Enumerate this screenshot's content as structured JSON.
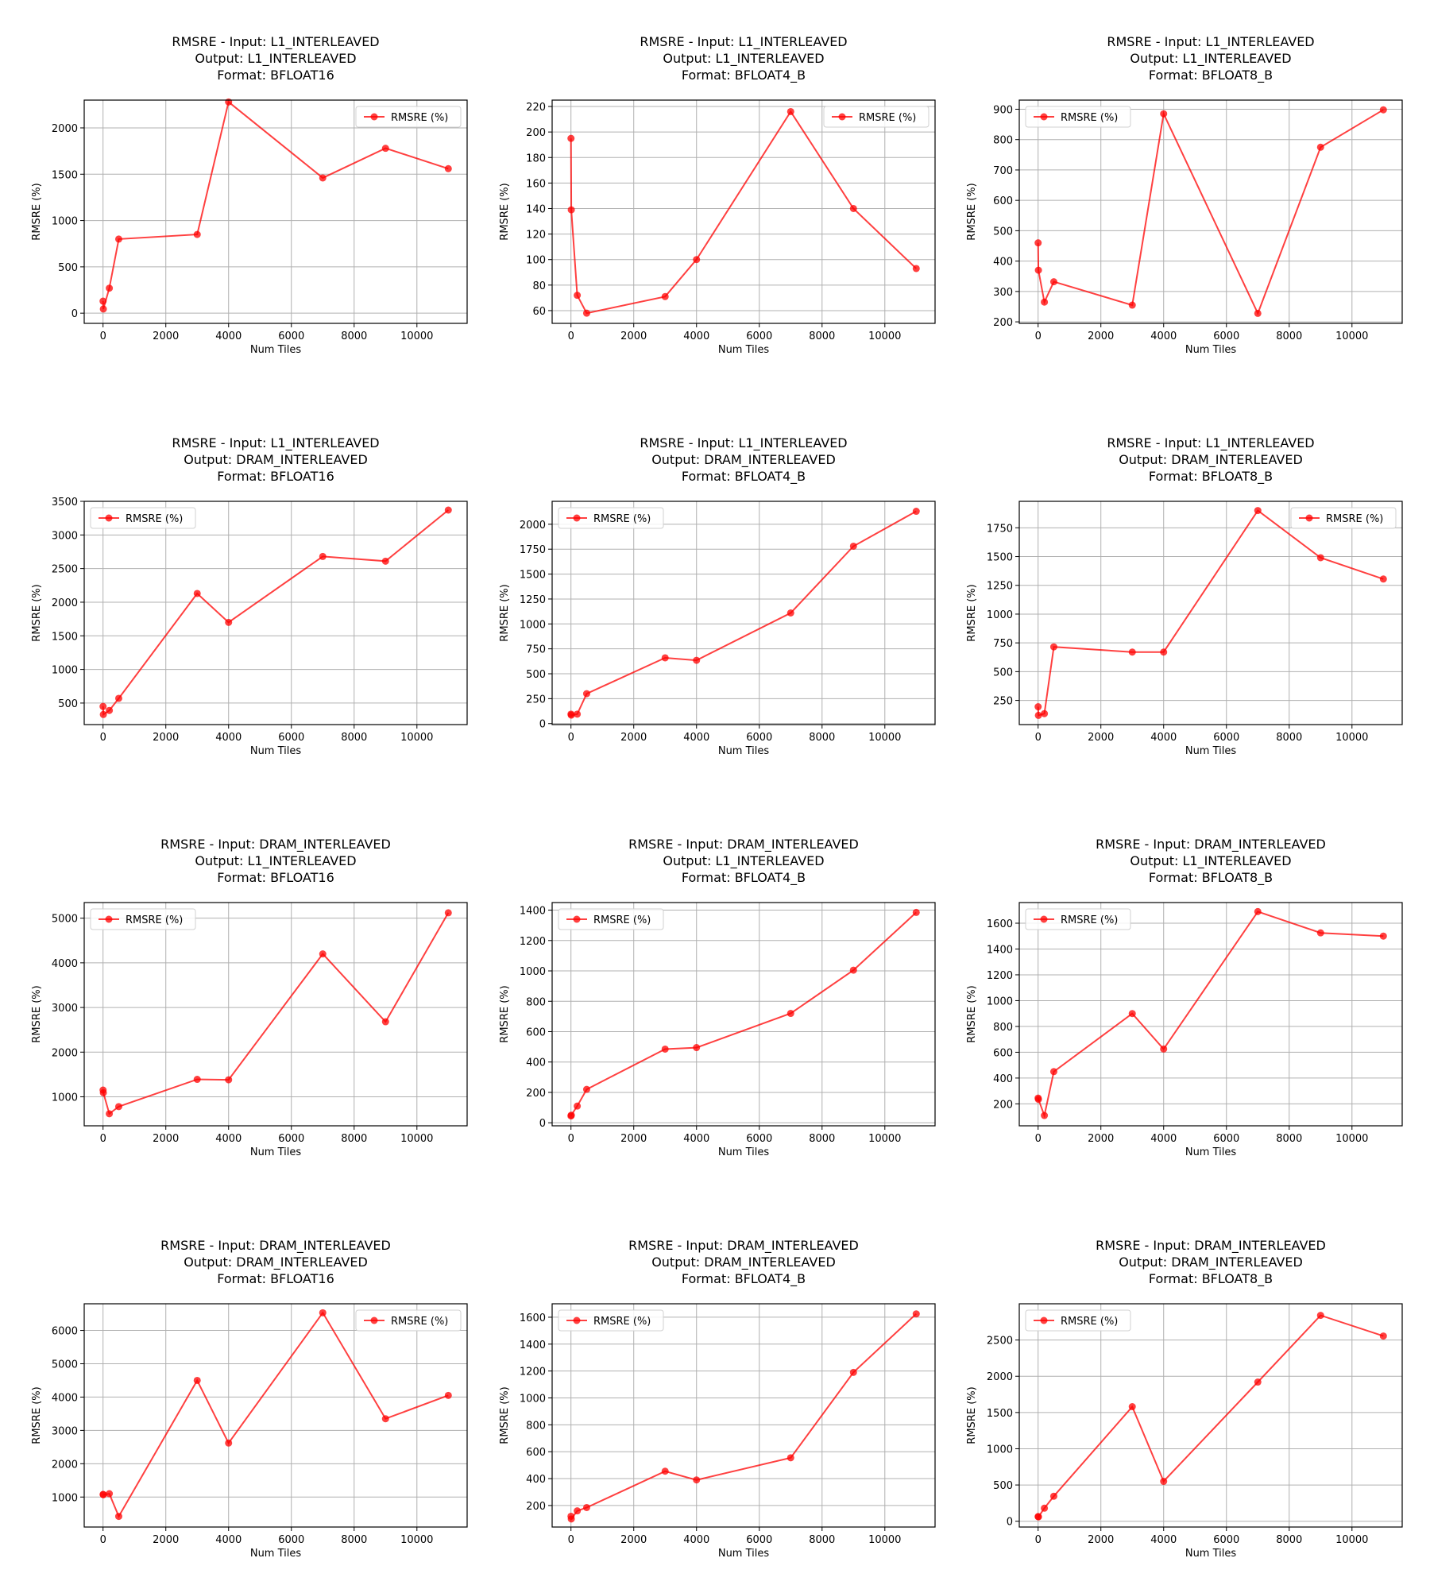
{
  "legend_label": "RMSRE (%)",
  "chart_data": [
    {
      "type": "line",
      "title_lines": [
        "RMSRE - Input: L1_INTERLEAVED",
        "Output: L1_INTERLEAVED",
        "Format: BFLOAT16"
      ],
      "xlabel": "Num Tiles",
      "ylabel": "RMSRE (%)",
      "legend": "top-right",
      "grid": true,
      "xlim": [
        -600,
        11600
      ],
      "ylim": [
        -110,
        2300
      ],
      "xticks": [
        0,
        2000,
        4000,
        6000,
        8000,
        10000
      ],
      "yticks": [
        0,
        500,
        1000,
        1500,
        2000
      ],
      "series": [
        {
          "name": "RMSRE (%)",
          "color": "#ff0000",
          "x": [
            1,
            10,
            200,
            500,
            3000,
            4000,
            7000,
            9000,
            11000
          ],
          "y": [
            130,
            45,
            270,
            800,
            850,
            2280,
            1460,
            1780,
            1560
          ]
        }
      ]
    },
    {
      "type": "line",
      "title_lines": [
        "RMSRE - Input: L1_INTERLEAVED",
        "Output: L1_INTERLEAVED",
        "Format: BFLOAT4_B"
      ],
      "xlabel": "Num Tiles",
      "ylabel": "RMSRE (%)",
      "legend": "top-right",
      "grid": true,
      "xlim": [
        -600,
        11600
      ],
      "ylim": [
        50,
        225
      ],
      "xticks": [
        0,
        2000,
        4000,
        6000,
        8000,
        10000
      ],
      "yticks": [
        60,
        80,
        100,
        120,
        140,
        160,
        180,
        200,
        220
      ],
      "series": [
        {
          "name": "RMSRE (%)",
          "color": "#ff0000",
          "x": [
            1,
            10,
            200,
            500,
            3000,
            4000,
            7000,
            9000,
            11000
          ],
          "y": [
            195,
            139,
            72,
            58,
            71,
            100,
            216,
            140,
            93
          ]
        }
      ]
    },
    {
      "type": "line",
      "title_lines": [
        "RMSRE - Input: L1_INTERLEAVED",
        "Output: L1_INTERLEAVED",
        "Format: BFLOAT8_B"
      ],
      "xlabel": "Num Tiles",
      "ylabel": "RMSRE (%)",
      "legend": "top-left",
      "grid": true,
      "xlim": [
        -600,
        11600
      ],
      "ylim": [
        195,
        930
      ],
      "xticks": [
        0,
        2000,
        4000,
        6000,
        8000,
        10000
      ],
      "yticks": [
        200,
        300,
        400,
        500,
        600,
        700,
        800,
        900
      ],
      "series": [
        {
          "name": "RMSRE (%)",
          "color": "#ff0000",
          "x": [
            1,
            10,
            200,
            500,
            3000,
            4000,
            7000,
            9000,
            11000
          ],
          "y": [
            460,
            370,
            265,
            332,
            255,
            885,
            228,
            775,
            898
          ]
        }
      ]
    },
    {
      "type": "line",
      "title_lines": [
        "RMSRE - Input: L1_INTERLEAVED",
        "Output: DRAM_INTERLEAVED",
        "Format: BFLOAT16"
      ],
      "xlabel": "Num Tiles",
      "ylabel": "RMSRE (%)",
      "legend": "top-left",
      "grid": true,
      "xlim": [
        -600,
        11600
      ],
      "ylim": [
        180,
        3500
      ],
      "xticks": [
        0,
        2000,
        4000,
        6000,
        8000,
        10000
      ],
      "yticks": [
        500,
        1000,
        1500,
        2000,
        2500,
        3000,
        3500
      ],
      "series": [
        {
          "name": "RMSRE (%)",
          "color": "#ff0000",
          "x": [
            1,
            10,
            200,
            500,
            3000,
            4000,
            7000,
            9000,
            11000
          ],
          "y": [
            450,
            330,
            390,
            570,
            2130,
            1700,
            2680,
            2610,
            3370
          ]
        }
      ]
    },
    {
      "type": "line",
      "title_lines": [
        "RMSRE - Input: L1_INTERLEAVED",
        "Output: DRAM_INTERLEAVED",
        "Format: BFLOAT4_B"
      ],
      "xlabel": "Num Tiles",
      "ylabel": "RMSRE (%)",
      "legend": "top-left",
      "grid": true,
      "xlim": [
        -600,
        11600
      ],
      "ylim": [
        -10,
        2230
      ],
      "xticks": [
        0,
        2000,
        4000,
        6000,
        8000,
        10000
      ],
      "yticks": [
        0,
        250,
        500,
        750,
        1000,
        1250,
        1500,
        1750,
        2000
      ],
      "series": [
        {
          "name": "RMSRE (%)",
          "color": "#ff0000",
          "x": [
            1,
            10,
            200,
            500,
            3000,
            4000,
            7000,
            9000,
            11000
          ],
          "y": [
            95,
            85,
            95,
            300,
            660,
            635,
            1110,
            1780,
            2130
          ]
        }
      ]
    },
    {
      "type": "line",
      "title_lines": [
        "RMSRE - Input: L1_INTERLEAVED",
        "Output: DRAM_INTERLEAVED",
        "Format: BFLOAT8_B"
      ],
      "xlabel": "Num Tiles",
      "ylabel": "RMSRE (%)",
      "legend": "top-right",
      "grid": true,
      "xlim": [
        -600,
        11600
      ],
      "ylim": [
        40,
        1980
      ],
      "xticks": [
        0,
        2000,
        4000,
        6000,
        8000,
        10000
      ],
      "yticks": [
        250,
        500,
        750,
        1000,
        1250,
        1500,
        1750
      ],
      "series": [
        {
          "name": "RMSRE (%)",
          "color": "#ff0000",
          "x": [
            1,
            10,
            200,
            500,
            3000,
            4000,
            7000,
            9000,
            11000
          ],
          "y": [
            195,
            120,
            135,
            715,
            670,
            670,
            1900,
            1490,
            1305
          ]
        }
      ]
    },
    {
      "type": "line",
      "title_lines": [
        "RMSRE - Input: DRAM_INTERLEAVED",
        "Output: L1_INTERLEAVED",
        "Format: BFLOAT16"
      ],
      "xlabel": "Num Tiles",
      "ylabel": "RMSRE (%)",
      "legend": "top-left",
      "grid": true,
      "xlim": [
        -600,
        11600
      ],
      "ylim": [
        350,
        5350
      ],
      "xticks": [
        0,
        2000,
        4000,
        6000,
        8000,
        10000
      ],
      "yticks": [
        1000,
        2000,
        3000,
        4000,
        5000
      ],
      "series": [
        {
          "name": "RMSRE (%)",
          "color": "#ff0000",
          "x": [
            1,
            10,
            200,
            500,
            3000,
            4000,
            7000,
            9000,
            11000
          ],
          "y": [
            1150,
            1090,
            620,
            780,
            1390,
            1380,
            4200,
            2680,
            5120
          ]
        }
      ]
    },
    {
      "type": "line",
      "title_lines": [
        "RMSRE - Input: DRAM_INTERLEAVED",
        "Output: L1_INTERLEAVED",
        "Format: BFLOAT4_B"
      ],
      "xlabel": "Num Tiles",
      "ylabel": "RMSRE (%)",
      "legend": "top-left",
      "grid": true,
      "xlim": [
        -600,
        11600
      ],
      "ylim": [
        -20,
        1450
      ],
      "xticks": [
        0,
        2000,
        4000,
        6000,
        8000,
        10000
      ],
      "yticks": [
        0,
        200,
        400,
        600,
        800,
        1000,
        1200,
        1400
      ],
      "series": [
        {
          "name": "RMSRE (%)",
          "color": "#ff0000",
          "x": [
            1,
            10,
            200,
            500,
            3000,
            4000,
            7000,
            9000,
            11000
          ],
          "y": [
            45,
            50,
            110,
            220,
            485,
            495,
            720,
            1005,
            1385
          ]
        }
      ]
    },
    {
      "type": "line",
      "title_lines": [
        "RMSRE - Input: DRAM_INTERLEAVED",
        "Output: L1_INTERLEAVED",
        "Format: BFLOAT8_B"
      ],
      "xlabel": "Num Tiles",
      "ylabel": "RMSRE (%)",
      "legend": "top-left",
      "grid": true,
      "xlim": [
        -600,
        11600
      ],
      "ylim": [
        30,
        1760
      ],
      "xticks": [
        0,
        2000,
        4000,
        6000,
        8000,
        10000
      ],
      "yticks": [
        200,
        400,
        600,
        800,
        1000,
        1200,
        1400,
        1600
      ],
      "series": [
        {
          "name": "RMSRE (%)",
          "color": "#ff0000",
          "x": [
            1,
            10,
            200,
            500,
            3000,
            4000,
            7000,
            9000,
            11000
          ],
          "y": [
            245,
            235,
            110,
            450,
            900,
            625,
            1690,
            1525,
            1500
          ]
        }
      ]
    },
    {
      "type": "line",
      "title_lines": [
        "RMSRE - Input: DRAM_INTERLEAVED",
        "Output: DRAM_INTERLEAVED",
        "Format: BFLOAT16"
      ],
      "xlabel": "Num Tiles",
      "ylabel": "RMSRE (%)",
      "legend": "top-right",
      "grid": true,
      "xlim": [
        -600,
        11600
      ],
      "ylim": [
        100,
        6800
      ],
      "xticks": [
        0,
        2000,
        4000,
        6000,
        8000,
        10000
      ],
      "yticks": [
        1000,
        2000,
        3000,
        4000,
        5000,
        6000
      ],
      "series": [
        {
          "name": "RMSRE (%)",
          "color": "#ff0000",
          "x": [
            1,
            10,
            200,
            500,
            3000,
            4000,
            7000,
            9000,
            11000
          ],
          "y": [
            1080,
            1070,
            1100,
            420,
            4500,
            2620,
            6530,
            3350,
            4050
          ]
        }
      ]
    },
    {
      "type": "line",
      "title_lines": [
        "RMSRE - Input: DRAM_INTERLEAVED",
        "Output: DRAM_INTERLEAVED",
        "Format: BFLOAT4_B"
      ],
      "xlabel": "Num Tiles",
      "ylabel": "RMSRE (%)",
      "legend": "top-left",
      "grid": true,
      "xlim": [
        -600,
        11600
      ],
      "ylim": [
        40,
        1700
      ],
      "xticks": [
        0,
        2000,
        4000,
        6000,
        8000,
        10000
      ],
      "yticks": [
        200,
        400,
        600,
        800,
        1000,
        1200,
        1400,
        1600
      ],
      "series": [
        {
          "name": "RMSRE (%)",
          "color": "#ff0000",
          "x": [
            1,
            10,
            200,
            500,
            3000,
            4000,
            7000,
            9000,
            11000
          ],
          "y": [
            120,
            100,
            160,
            185,
            455,
            390,
            555,
            1190,
            1625
          ]
        }
      ]
    },
    {
      "type": "line",
      "title_lines": [
        "RMSRE - Input: DRAM_INTERLEAVED",
        "Output: DRAM_INTERLEAVED",
        "Format: BFLOAT8_B"
      ],
      "xlabel": "Num Tiles",
      "ylabel": "RMSRE (%)",
      "legend": "top-left",
      "grid": true,
      "xlim": [
        -600,
        11600
      ],
      "ylim": [
        -80,
        3000
      ],
      "xticks": [
        0,
        2000,
        4000,
        6000,
        8000,
        10000
      ],
      "yticks": [
        0,
        500,
        1000,
        1500,
        2000,
        2500
      ],
      "series": [
        {
          "name": "RMSRE (%)",
          "color": "#ff0000",
          "x": [
            1,
            10,
            200,
            500,
            3000,
            4000,
            7000,
            9000,
            11000
          ],
          "y": [
            65,
            60,
            180,
            345,
            1580,
            550,
            1920,
            2840,
            2555
          ]
        }
      ]
    }
  ]
}
